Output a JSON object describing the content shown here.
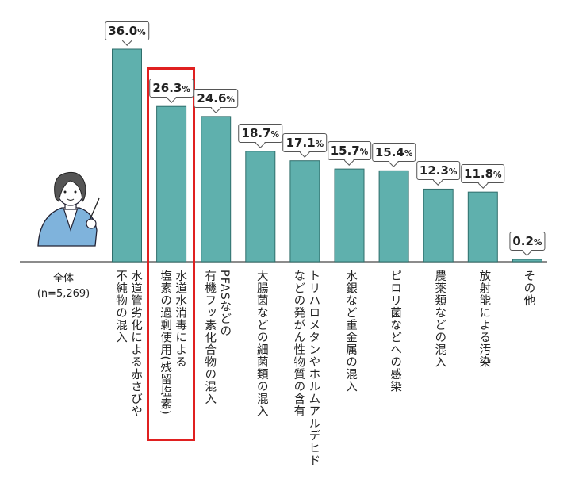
{
  "chart_data": {
    "type": "bar",
    "group_label": [
      "全体",
      "(n=5,269)"
    ],
    "categories": [
      [
        "水道管劣化による赤さびや",
        "不純物の混入"
      ],
      [
        "水道水消毒による",
        "塩素の過剰使用(残留塩素)"
      ],
      [
        "PFASなどの",
        "有機フッ素化合物の混入"
      ],
      [
        "大腸菌などの細菌類の混入"
      ],
      [
        "トリハロメタンやホルムアルデヒド",
        "などの発がん性物質の含有"
      ],
      [
        "水銀など重金属の混入"
      ],
      [
        "ピロリ菌などへの感染"
      ],
      [
        "農薬類などの混入"
      ],
      [
        "放射能による汚染"
      ],
      [
        "その他"
      ]
    ],
    "values": [
      36.0,
      26.3,
      24.6,
      18.7,
      17.1,
      15.7,
      15.4,
      12.3,
      11.8,
      0.2
    ],
    "value_unit": "%",
    "ylim": [
      0,
      40
    ],
    "highlighted_index": 1,
    "colors": {
      "bar": "#5fb0ad",
      "bar_edge": "#2f6e6b",
      "highlight": "#e02020",
      "axis": "#666666"
    }
  }
}
